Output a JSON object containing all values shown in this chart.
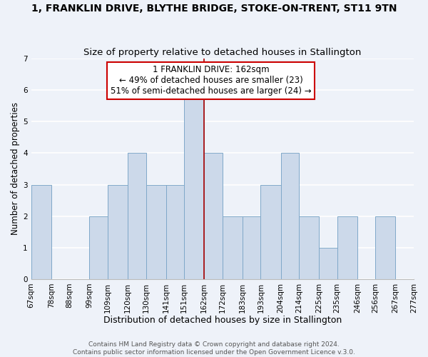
{
  "title": "1, FRANKLIN DRIVE, BLYTHE BRIDGE, STOKE-ON-TRENT, ST11 9TN",
  "subtitle": "Size of property relative to detached houses in Stallington",
  "xlabel": "Distribution of detached houses by size in Stallington",
  "ylabel": "Number of detached properties",
  "bin_edges": [
    67,
    78,
    88,
    99,
    109,
    120,
    130,
    141,
    151,
    162,
    172,
    183,
    193,
    204,
    214,
    225,
    235,
    246,
    256,
    267,
    277
  ],
  "bar_heights": [
    3,
    0,
    0,
    2,
    3,
    4,
    3,
    3,
    6,
    4,
    2,
    2,
    3,
    4,
    2,
    1,
    2,
    0,
    2,
    0
  ],
  "bar_color": "#ccd9ea",
  "bar_edgecolor": "#7fa8c9",
  "vline_x": 162,
  "vline_color": "#aa0000",
  "annotation_text": "1 FRANKLIN DRIVE: 162sqm\n← 49% of detached houses are smaller (23)\n51% of semi-detached houses are larger (24) →",
  "annotation_box_edgecolor": "#cc0000",
  "annotation_box_facecolor": "#ffffff",
  "ylim": [
    0,
    7
  ],
  "yticks": [
    0,
    1,
    2,
    3,
    4,
    5,
    6,
    7
  ],
  "background_color": "#eef2f9",
  "grid_color": "#ffffff",
  "footer_text": "Contains HM Land Registry data © Crown copyright and database right 2024.\nContains public sector information licensed under the Open Government Licence v.3.0.",
  "title_fontsize": 10,
  "subtitle_fontsize": 9.5,
  "xlabel_fontsize": 9,
  "ylabel_fontsize": 8.5,
  "tick_fontsize": 7.5,
  "annotation_fontsize": 8.5,
  "footer_fontsize": 6.5
}
